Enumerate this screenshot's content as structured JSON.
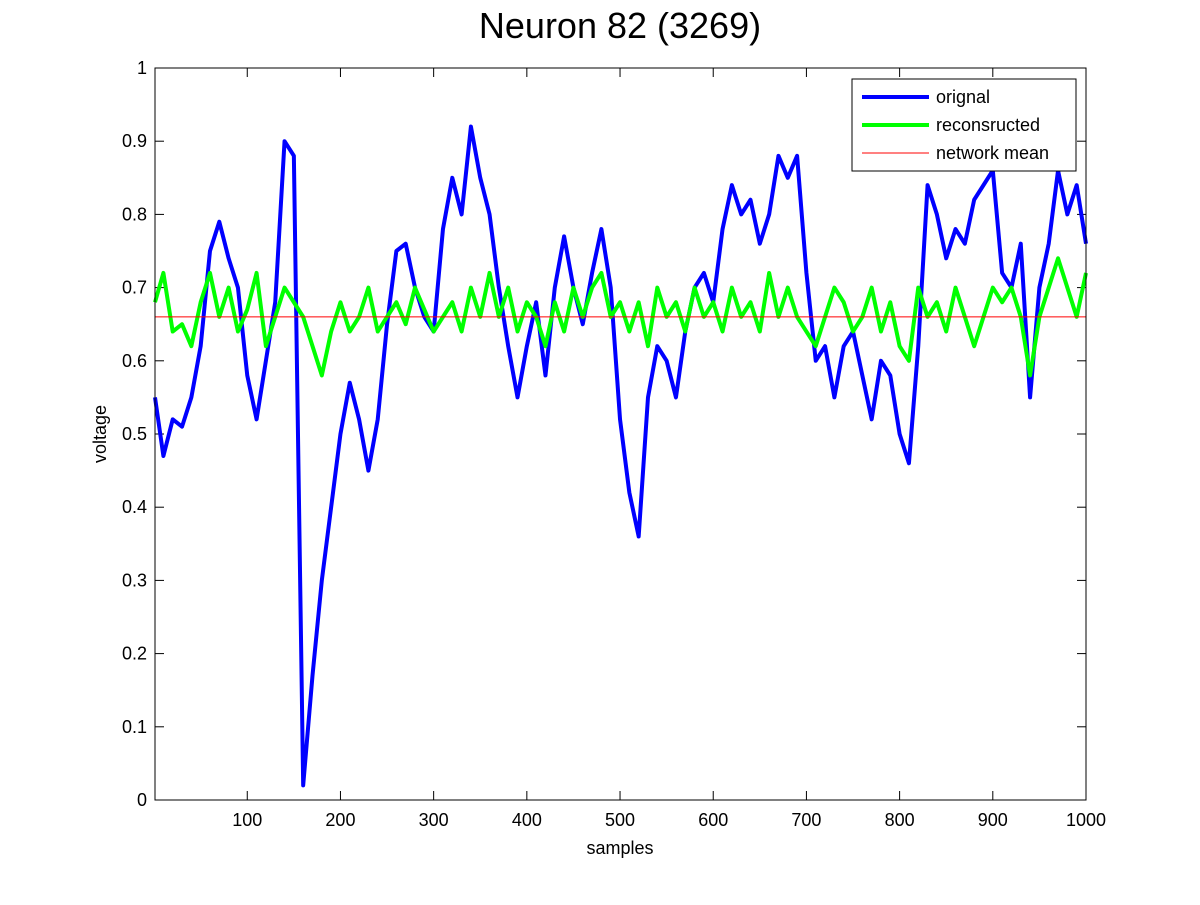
{
  "chart_data": {
    "type": "line",
    "title": "Neuron 82 (3269)",
    "xlabel": "samples",
    "ylabel": "voltage",
    "x": [
      1,
      10,
      20,
      30,
      40,
      50,
      60,
      70,
      80,
      90,
      100,
      110,
      120,
      130,
      140,
      150,
      160,
      170,
      180,
      190,
      200,
      210,
      220,
      230,
      240,
      250,
      260,
      270,
      280,
      290,
      300,
      310,
      320,
      330,
      340,
      350,
      360,
      370,
      380,
      390,
      400,
      410,
      420,
      430,
      440,
      450,
      460,
      470,
      480,
      490,
      500,
      510,
      520,
      530,
      540,
      550,
      560,
      570,
      580,
      590,
      600,
      610,
      620,
      630,
      640,
      650,
      660,
      670,
      680,
      690,
      700,
      710,
      720,
      730,
      740,
      750,
      760,
      770,
      780,
      790,
      800,
      810,
      820,
      830,
      840,
      850,
      860,
      870,
      880,
      890,
      900,
      910,
      920,
      930,
      940,
      950,
      960,
      970,
      980,
      990,
      1000
    ],
    "series": [
      {
        "name": "orignal",
        "color": "#0000ff",
        "width": 4,
        "values": [
          0.55,
          0.47,
          0.52,
          0.51,
          0.55,
          0.62,
          0.75,
          0.79,
          0.74,
          0.7,
          0.58,
          0.52,
          0.6,
          0.68,
          0.9,
          0.88,
          0.02,
          0.17,
          0.3,
          0.4,
          0.5,
          0.57,
          0.52,
          0.45,
          0.52,
          0.65,
          0.75,
          0.76,
          0.7,
          0.66,
          0.64,
          0.78,
          0.85,
          0.8,
          0.92,
          0.85,
          0.8,
          0.7,
          0.62,
          0.55,
          0.62,
          0.68,
          0.58,
          0.7,
          0.77,
          0.7,
          0.65,
          0.72,
          0.78,
          0.7,
          0.52,
          0.42,
          0.36,
          0.55,
          0.62,
          0.6,
          0.55,
          0.64,
          0.7,
          0.72,
          0.68,
          0.78,
          0.84,
          0.8,
          0.82,
          0.76,
          0.8,
          0.88,
          0.85,
          0.88,
          0.72,
          0.6,
          0.62,
          0.55,
          0.62,
          0.64,
          0.58,
          0.52,
          0.6,
          0.58,
          0.5,
          0.46,
          0.62,
          0.84,
          0.8,
          0.74,
          0.78,
          0.76,
          0.82,
          0.84,
          0.86,
          0.72,
          0.7,
          0.76,
          0.55,
          0.7,
          0.76,
          0.86,
          0.8,
          0.84,
          0.76
        ]
      },
      {
        "name": "reconsructed",
        "color": "#00ff00",
        "width": 4,
        "values": [
          0.68,
          0.72,
          0.64,
          0.65,
          0.62,
          0.68,
          0.72,
          0.66,
          0.7,
          0.64,
          0.67,
          0.72,
          0.62,
          0.66,
          0.7,
          0.68,
          0.66,
          0.62,
          0.58,
          0.64,
          0.68,
          0.64,
          0.66,
          0.7,
          0.64,
          0.66,
          0.68,
          0.65,
          0.7,
          0.67,
          0.64,
          0.66,
          0.68,
          0.64,
          0.7,
          0.66,
          0.72,
          0.66,
          0.7,
          0.64,
          0.68,
          0.66,
          0.62,
          0.68,
          0.64,
          0.7,
          0.66,
          0.7,
          0.72,
          0.66,
          0.68,
          0.64,
          0.68,
          0.62,
          0.7,
          0.66,
          0.68,
          0.64,
          0.7,
          0.66,
          0.68,
          0.64,
          0.7,
          0.66,
          0.68,
          0.64,
          0.72,
          0.66,
          0.7,
          0.66,
          0.64,
          0.62,
          0.66,
          0.7,
          0.68,
          0.64,
          0.66,
          0.7,
          0.64,
          0.68,
          0.62,
          0.6,
          0.7,
          0.66,
          0.68,
          0.64,
          0.7,
          0.66,
          0.62,
          0.66,
          0.7,
          0.68,
          0.7,
          0.66,
          0.58,
          0.66,
          0.7,
          0.74,
          0.7,
          0.66,
          0.72
        ]
      },
      {
        "name": "network mean",
        "color": "#ff0000",
        "width": 1,
        "x": [
          1,
          1000
        ],
        "values": [
          0.66,
          0.66
        ]
      }
    ],
    "xlim": [
      1,
      1000
    ],
    "xticks": [
      100,
      200,
      300,
      400,
      500,
      600,
      700,
      800,
      900,
      1000
    ],
    "ylim": [
      0,
      1
    ],
    "yticks": [
      0,
      0.1,
      0.2,
      0.3,
      0.4,
      0.5,
      0.6,
      0.7,
      0.8,
      0.9,
      1
    ],
    "legend": "northeast"
  }
}
